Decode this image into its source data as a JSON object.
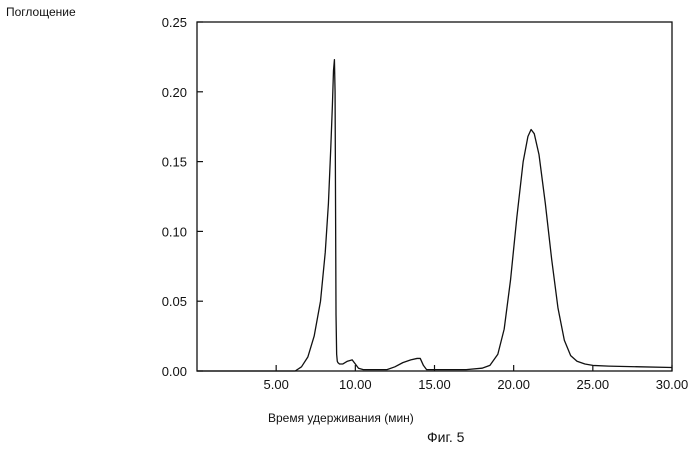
{
  "chart_data": {
    "type": "line",
    "ylabel": "Поглощение",
    "xlabel": "Время удерживания (мин)",
    "caption": "Фиг. 5",
    "xlim": [
      0,
      30
    ],
    "ylim": [
      0,
      0.25
    ],
    "x_ticks": [
      5,
      10,
      15,
      20,
      25,
      30
    ],
    "x_tick_labels": [
      "5.00",
      "10.00",
      "15.00",
      "20.00",
      "25.00",
      "30.00"
    ],
    "y_ticks": [
      0,
      0.05,
      0.1,
      0.15,
      0.2,
      0.25
    ],
    "y_tick_labels": [
      "0.00",
      "0.05",
      "0.10",
      "0.15",
      "0.20",
      "0.25"
    ],
    "grid": false,
    "series": [
      {
        "x": [
          0,
          6.2,
          6.6,
          7.0,
          7.4,
          7.8,
          8.1,
          8.3,
          8.45,
          8.55,
          8.62,
          8.68,
          8.72,
          8.75,
          8.78,
          8.82,
          8.86,
          8.9,
          9.0,
          9.2,
          9.5,
          9.8,
          10.0,
          10.2,
          10.5,
          11.0,
          12.0,
          12.5,
          13.0,
          13.5,
          13.9,
          14.1,
          14.3,
          14.5,
          15.0,
          16.0,
          17.0,
          18.0,
          18.5,
          19.0,
          19.4,
          19.8,
          20.2,
          20.6,
          20.9,
          21.1,
          21.3,
          21.6,
          22.0,
          22.4,
          22.8,
          23.2,
          23.6,
          24.0,
          24.5,
          25.0,
          26.0,
          28.0,
          30.0
        ],
        "y": [
          0,
          0,
          0.003,
          0.01,
          0.025,
          0.05,
          0.085,
          0.12,
          0.16,
          0.19,
          0.215,
          0.223,
          0.2,
          0.12,
          0.04,
          0.012,
          0.007,
          0.006,
          0.005,
          0.005,
          0.007,
          0.008,
          0.005,
          0.002,
          0.001,
          0.001,
          0.001,
          0.003,
          0.006,
          0.008,
          0.009,
          0.009,
          0.004,
          0.001,
          0.001,
          0.001,
          0.001,
          0.002,
          0.004,
          0.012,
          0.03,
          0.065,
          0.11,
          0.15,
          0.168,
          0.173,
          0.17,
          0.155,
          0.12,
          0.08,
          0.045,
          0.022,
          0.011,
          0.007,
          0.005,
          0.004,
          0.0035,
          0.003,
          0.0025
        ]
      }
    ]
  }
}
